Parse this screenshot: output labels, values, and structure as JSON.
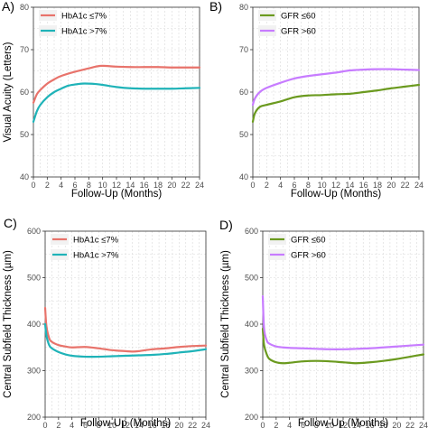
{
  "chart_data": [
    {
      "type": "line",
      "panel": "A)",
      "xlabel": "Follow-Up (Months)",
      "ylabel": "Visual Acuity (Letters)",
      "xlim": [
        0,
        24
      ],
      "ylim": [
        40,
        80
      ],
      "xticks": [
        0,
        2,
        4,
        6,
        8,
        10,
        12,
        14,
        16,
        18,
        20,
        22,
        24
      ],
      "yticks": [
        40,
        50,
        60,
        70,
        80
      ],
      "grid": true,
      "legend_position": "top-left",
      "series": [
        {
          "name": "HbA1c ≤7%",
          "color": "#e8736b",
          "x": [
            0,
            0.5,
            1,
            2,
            3,
            4,
            6,
            8,
            9,
            10,
            12,
            14,
            16,
            18,
            20,
            22,
            24
          ],
          "y": [
            57.5,
            59.5,
            60.5,
            62,
            63,
            63.8,
            64.8,
            65.6,
            66,
            66.2,
            66,
            65.9,
            65.9,
            65.9,
            65.8,
            65.8,
            65.8
          ]
        },
        {
          "name": "HbA1c >7%",
          "color": "#1fb3b8",
          "x": [
            0,
            0.5,
            1,
            2,
            3,
            4,
            5,
            6,
            7,
            8,
            9,
            10,
            12,
            14,
            16,
            18,
            20,
            22,
            24
          ],
          "y": [
            53,
            55.5,
            57,
            58.8,
            60,
            60.8,
            61.5,
            61.8,
            62,
            62,
            61.9,
            61.7,
            61.2,
            60.9,
            60.8,
            60.8,
            60.8,
            60.9,
            61
          ]
        }
      ]
    },
    {
      "type": "line",
      "panel": "B)",
      "xlabel": "Follow-Up (Months)",
      "ylabel": "",
      "xlim": [
        0,
        24
      ],
      "ylim": [
        40,
        80
      ],
      "xticks": [
        0,
        2,
        4,
        6,
        8,
        10,
        12,
        14,
        16,
        18,
        20,
        22,
        24
      ],
      "yticks": [
        40,
        50,
        60,
        70,
        80
      ],
      "grid": true,
      "legend_position": "top-left",
      "series": [
        {
          "name": "GFR ≤60",
          "color": "#6b9a1f",
          "x": [
            0,
            0.3,
            1,
            2,
            4,
            6,
            8,
            10,
            12,
            14,
            16,
            18,
            20,
            22,
            24
          ],
          "y": [
            53,
            55,
            56.5,
            57,
            57.8,
            58.8,
            59.2,
            59.3,
            59.5,
            59.6,
            60,
            60.4,
            60.9,
            61.3,
            61.7
          ]
        },
        {
          "name": "GFR >60",
          "color": "#c77cff",
          "x": [
            0,
            0.3,
            1,
            2,
            4,
            6,
            8,
            10,
            12,
            14,
            16,
            18,
            20,
            22,
            24
          ],
          "y": [
            57,
            58.5,
            60,
            61,
            62.2,
            63.2,
            63.8,
            64.2,
            64.6,
            65.1,
            65.3,
            65.4,
            65.4,
            65.3,
            65.2
          ]
        }
      ]
    },
    {
      "type": "line",
      "panel": "C)",
      "xlabel": "Follow-Up (Months)",
      "ylabel": "Central Subfield Thickness (µm)",
      "xlim": [
        0,
        24
      ],
      "ylim": [
        200,
        600
      ],
      "xticks": [
        0,
        2,
        4,
        6,
        8,
        10,
        12,
        14,
        16,
        18,
        20,
        22,
        24
      ],
      "yticks": [
        200,
        300,
        400,
        500,
        600
      ],
      "grid": true,
      "legend_position": "top-left",
      "series": [
        {
          "name": "HbA1c ≤7%",
          "color": "#e8736b",
          "x": [
            0,
            0.2,
            0.6,
            1,
            2,
            3,
            4,
            6,
            8,
            10,
            12,
            13,
            14,
            16,
            18,
            20,
            22,
            24
          ],
          "y": [
            435,
            395,
            370,
            362,
            355,
            352,
            350,
            351,
            348,
            344,
            342,
            341,
            342,
            346,
            348,
            351,
            353,
            354
          ]
        },
        {
          "name": "HbA1c >7%",
          "color": "#1fb3b8",
          "x": [
            0,
            0.2,
            0.6,
            1,
            2,
            3,
            4,
            6,
            8,
            10,
            12,
            14,
            16,
            18,
            20,
            22,
            24
          ],
          "y": [
            400,
            375,
            355,
            348,
            340,
            335,
            332,
            330,
            330,
            331,
            332,
            333,
            334,
            336,
            339,
            342,
            346
          ]
        }
      ]
    },
    {
      "type": "line",
      "panel": "D)",
      "xlabel": "Follow-Up (Months)",
      "ylabel": "Central Subfield Thickness (µm)",
      "xlim": [
        0,
        24
      ],
      "ylim": [
        200,
        600
      ],
      "xticks": [
        0,
        2,
        4,
        6,
        8,
        10,
        12,
        14,
        16,
        18,
        20,
        22,
        24
      ],
      "yticks": [
        200,
        300,
        400,
        500,
        600
      ],
      "grid": true,
      "legend_position": "top-left",
      "series": [
        {
          "name": "GFR ≤60",
          "color": "#6b9a1f",
          "x": [
            0,
            0.2,
            0.6,
            1,
            2,
            3,
            4,
            6,
            8,
            10,
            12,
            14,
            16,
            18,
            20,
            22,
            24
          ],
          "y": [
            390,
            355,
            335,
            325,
            318,
            316,
            317,
            320,
            321,
            320,
            318,
            316,
            318,
            321,
            325,
            330,
            335
          ]
        },
        {
          "name": "GFR >60",
          "color": "#c77cff",
          "x": [
            0,
            0.2,
            0.6,
            1,
            2,
            3,
            4,
            6,
            8,
            10,
            12,
            14,
            16,
            18,
            20,
            22,
            24
          ],
          "y": [
            460,
            390,
            365,
            358,
            352,
            350,
            349,
            348,
            347,
            346,
            346,
            347,
            348,
            350,
            352,
            354,
            356
          ]
        }
      ]
    }
  ]
}
